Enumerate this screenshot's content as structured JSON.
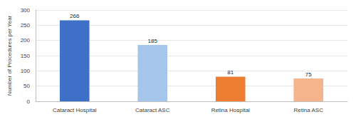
{
  "chart_data": {
    "type": "bar",
    "ylabel": "Number of Procedures per Year",
    "categories": [
      "Cataract Hospital",
      "Cataract ASC",
      "Retina Hospital",
      "Retina ASC"
    ],
    "values": [
      266,
      185,
      81,
      75
    ],
    "colors": [
      "#3d70c6",
      "#a5c5ea",
      "#ed7d31",
      "#f5b48c"
    ],
    "ylim": [
      0,
      300
    ],
    "yticks": [
      0,
      50,
      100,
      150,
      200,
      250,
      300
    ],
    "grid": true,
    "data_labels": true
  }
}
